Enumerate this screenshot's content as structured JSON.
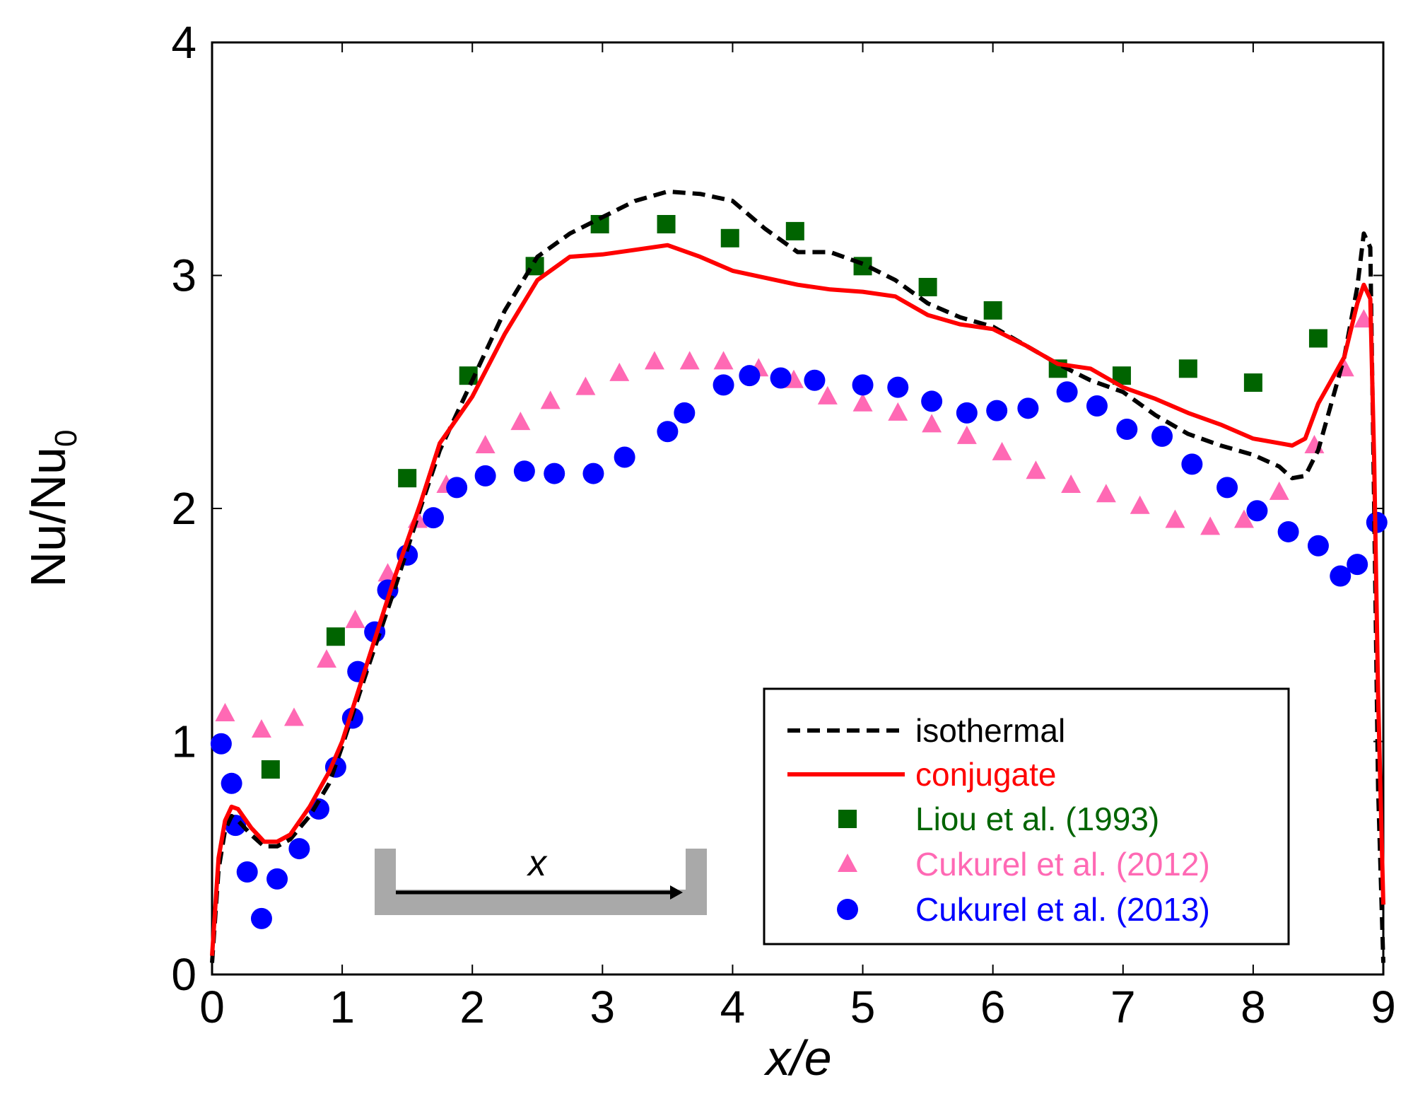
{
  "chart_data": {
    "type": "line",
    "title": "",
    "xlabel": "x/e",
    "ylabel": "Nu/Nu0",
    "ylabel_main": "Nu/Nu",
    "ylabel_sub": "0",
    "xlim": [
      0,
      9
    ],
    "ylim": [
      0,
      4
    ],
    "x_ticks": [
      0,
      1,
      2,
      3,
      4,
      5,
      6,
      7,
      8,
      9
    ],
    "y_ticks": [
      0,
      1,
      2,
      3,
      4
    ],
    "x_tick_labels": [
      "0",
      "1",
      "2",
      "3",
      "4",
      "5",
      "6",
      "7",
      "8",
      "9"
    ],
    "y_tick_labels": [
      "0",
      "1",
      "2",
      "3",
      "4"
    ],
    "grid": false,
    "legend_position": "bottom-right",
    "inset_label": "x",
    "series": [
      {
        "name": "isothermal",
        "style": "dashed-line",
        "color": "#000000",
        "x": [
          0.0,
          0.05,
          0.1,
          0.15,
          0.2,
          0.3,
          0.4,
          0.5,
          0.6,
          0.75,
          0.9,
          1.0,
          1.2,
          1.4,
          1.6,
          1.75,
          2.0,
          2.25,
          2.5,
          2.75,
          3.0,
          3.25,
          3.5,
          3.75,
          4.0,
          4.25,
          4.5,
          4.75,
          5.0,
          5.25,
          5.5,
          5.75,
          6.0,
          6.25,
          6.5,
          6.75,
          7.0,
          7.25,
          7.5,
          7.75,
          8.0,
          8.2,
          8.3,
          8.4,
          8.5,
          8.6,
          8.7,
          8.8,
          8.85,
          8.9,
          8.93,
          8.96,
          9.0
        ],
        "y": [
          0.05,
          0.45,
          0.62,
          0.68,
          0.66,
          0.6,
          0.55,
          0.55,
          0.58,
          0.68,
          0.82,
          0.98,
          1.32,
          1.65,
          2.0,
          2.25,
          2.55,
          2.85,
          3.08,
          3.18,
          3.25,
          3.32,
          3.36,
          3.35,
          3.32,
          3.2,
          3.1,
          3.1,
          3.05,
          2.98,
          2.88,
          2.82,
          2.78,
          2.7,
          2.62,
          2.55,
          2.5,
          2.4,
          2.32,
          2.27,
          2.23,
          2.18,
          2.13,
          2.14,
          2.25,
          2.45,
          2.65,
          2.95,
          3.18,
          3.12,
          2.0,
          0.8,
          0.05
        ]
      },
      {
        "name": "conjugate",
        "style": "solid-line",
        "color": "#ff0000",
        "x": [
          0.0,
          0.05,
          0.1,
          0.15,
          0.2,
          0.3,
          0.4,
          0.5,
          0.6,
          0.75,
          0.9,
          1.0,
          1.2,
          1.4,
          1.6,
          1.75,
          2.0,
          2.25,
          2.5,
          2.75,
          3.0,
          3.25,
          3.5,
          3.75,
          4.0,
          4.25,
          4.5,
          4.75,
          5.0,
          5.25,
          5.5,
          5.75,
          6.0,
          6.25,
          6.5,
          6.75,
          7.0,
          7.25,
          7.5,
          7.75,
          8.0,
          8.2,
          8.3,
          8.4,
          8.5,
          8.6,
          8.7,
          8.8,
          8.85,
          8.9,
          8.93,
          8.96,
          9.0
        ],
        "y": [
          0.08,
          0.5,
          0.66,
          0.72,
          0.71,
          0.63,
          0.57,
          0.57,
          0.6,
          0.72,
          0.87,
          1.0,
          1.35,
          1.7,
          2.02,
          2.28,
          2.48,
          2.75,
          2.98,
          3.08,
          3.09,
          3.11,
          3.13,
          3.08,
          3.02,
          2.99,
          2.96,
          2.94,
          2.93,
          2.91,
          2.83,
          2.79,
          2.77,
          2.7,
          2.62,
          2.6,
          2.52,
          2.47,
          2.41,
          2.36,
          2.3,
          2.28,
          2.27,
          2.3,
          2.45,
          2.55,
          2.65,
          2.88,
          2.96,
          2.9,
          2.2,
          1.2,
          0.3
        ]
      },
      {
        "name": "Liou et al. (1993)",
        "style": "square-marker",
        "color": "#006400",
        "x": [
          0.45,
          0.95,
          1.5,
          1.97,
          2.48,
          2.98,
          3.49,
          3.98,
          4.48,
          5.0,
          5.5,
          6.0,
          6.5,
          6.99,
          7.5,
          8.0,
          8.5
        ],
        "y": [
          0.88,
          1.45,
          2.13,
          2.57,
          3.04,
          3.22,
          3.22,
          3.16,
          3.19,
          3.04,
          2.95,
          2.85,
          2.6,
          2.57,
          2.6,
          2.54,
          2.73
        ]
      },
      {
        "name": "Cukurel et al. (2012)",
        "style": "triangle-marker",
        "color": "#ff69b4",
        "x": [
          0.1,
          0.38,
          0.63,
          0.88,
          1.1,
          1.35,
          1.58,
          1.8,
          2.1,
          2.37,
          2.6,
          2.87,
          3.13,
          3.4,
          3.67,
          3.93,
          4.2,
          4.47,
          4.73,
          5.0,
          5.27,
          5.53,
          5.8,
          6.07,
          6.33,
          6.6,
          6.87,
          7.13,
          7.4,
          7.67,
          7.93,
          8.2,
          8.47,
          8.7,
          8.85
        ],
        "y": [
          1.12,
          1.05,
          1.1,
          1.35,
          1.52,
          1.72,
          1.95,
          2.1,
          2.27,
          2.37,
          2.46,
          2.52,
          2.58,
          2.63,
          2.63,
          2.63,
          2.6,
          2.55,
          2.48,
          2.45,
          2.41,
          2.36,
          2.31,
          2.24,
          2.16,
          2.1,
          2.06,
          2.01,
          1.95,
          1.92,
          1.95,
          2.07,
          2.27,
          2.6,
          2.81
        ]
      },
      {
        "name": "Cukurel et al. (2013)",
        "style": "circle-marker",
        "color": "#0000ff",
        "x": [
          0.07,
          0.15,
          0.18,
          0.27,
          0.38,
          0.5,
          0.67,
          0.82,
          0.95,
          1.08,
          1.12,
          1.25,
          1.35,
          1.5,
          1.7,
          1.88,
          2.1,
          2.4,
          2.63,
          2.93,
          3.17,
          3.5,
          3.63,
          3.93,
          4.13,
          4.37,
          4.63,
          5.0,
          5.27,
          5.53,
          5.8,
          6.03,
          6.27,
          6.57,
          6.8,
          7.03,
          7.3,
          7.53,
          7.8,
          8.03,
          8.27,
          8.5,
          8.67,
          8.8,
          8.95
        ],
        "y": [
          0.99,
          0.82,
          0.64,
          0.44,
          0.24,
          0.41,
          0.54,
          0.71,
          0.89,
          1.1,
          1.3,
          1.47,
          1.65,
          1.8,
          1.96,
          2.09,
          2.14,
          2.16,
          2.15,
          2.15,
          2.22,
          2.33,
          2.41,
          2.53,
          2.57,
          2.56,
          2.55,
          2.53,
          2.52,
          2.46,
          2.41,
          2.42,
          2.43,
          2.5,
          2.44,
          2.34,
          2.31,
          2.19,
          2.09,
          1.99,
          1.9,
          1.84,
          1.71,
          1.76,
          1.94
        ]
      }
    ]
  }
}
